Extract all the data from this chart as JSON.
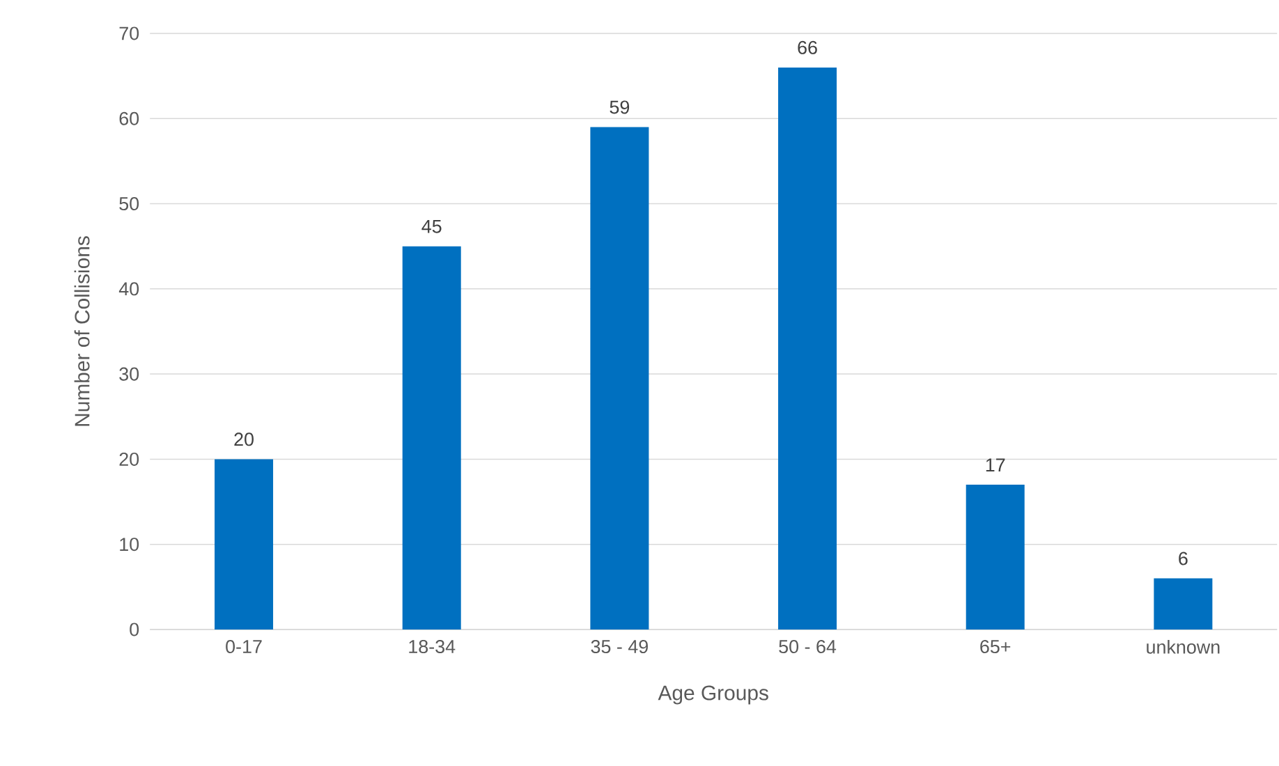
{
  "chart_data": {
    "type": "bar",
    "xlabel": "Age Groups",
    "ylabel": "Number of Collisions",
    "categories": [
      "0-17",
      "18-34",
      "35 - 49",
      "50 - 64",
      "65+",
      "unknown"
    ],
    "values": [
      20,
      45,
      59,
      66,
      17,
      6
    ],
    "color": "#0070c0",
    "ylim": [
      0,
      70
    ],
    "yticks": [
      0,
      10,
      20,
      30,
      40,
      50,
      60,
      70
    ],
    "grid": "y",
    "data_labels": true
  }
}
